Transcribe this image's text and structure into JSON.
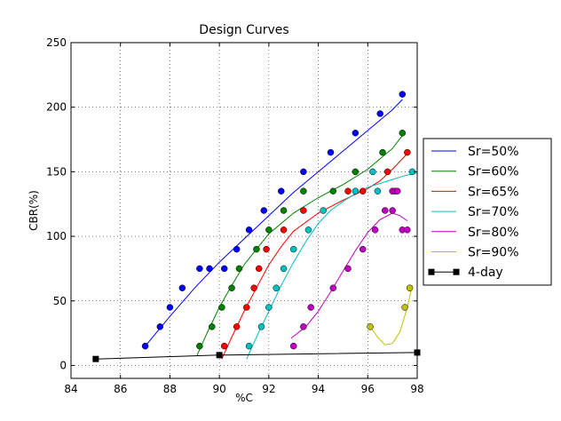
{
  "chart_data": {
    "type": "scatter",
    "title": "Design Curves",
    "xlabel": "%C",
    "ylabel": "CBR(%)",
    "xlim": [
      84,
      98
    ],
    "ylim": [
      -10,
      250
    ],
    "xticks": [
      84,
      86,
      88,
      90,
      92,
      94,
      96,
      98
    ],
    "xtick_labels": [
      "84",
      "86",
      "88",
      "90",
      "92",
      "94",
      "96",
      "98"
    ],
    "yticks": [
      0,
      50,
      100,
      150,
      200,
      250
    ],
    "ytick_labels": [
      "0",
      "50",
      "100",
      "150",
      "200",
      "250"
    ],
    "grid": true,
    "legend_position": "right-outside",
    "series": [
      {
        "name": "Sr=50%",
        "color": "#0000ff",
        "points": [
          [
            87,
            15
          ],
          [
            87.6,
            30
          ],
          [
            88,
            45
          ],
          [
            88.5,
            60
          ],
          [
            89.2,
            75
          ],
          [
            89.6,
            75
          ],
          [
            90.2,
            75
          ],
          [
            90.7,
            90
          ],
          [
            91.2,
            105
          ],
          [
            91.8,
            120
          ],
          [
            92.5,
            135
          ],
          [
            93.4,
            150
          ],
          [
            94.5,
            165
          ],
          [
            95.5,
            180
          ],
          [
            96.5,
            195
          ],
          [
            97.4,
            210
          ]
        ],
        "fit": [
          [
            87,
            15
          ],
          [
            88,
            38
          ],
          [
            89,
            60
          ],
          [
            90,
            80
          ],
          [
            91,
            98
          ],
          [
            92,
            116
          ],
          [
            93,
            134
          ],
          [
            94,
            150
          ],
          [
            95,
            166
          ],
          [
            96,
            182
          ],
          [
            97,
            198
          ],
          [
            97.4,
            206
          ]
        ]
      },
      {
        "name": "Sr=60%",
        "color": "#008000",
        "points": [
          [
            89.2,
            15
          ],
          [
            89.7,
            30
          ],
          [
            90.1,
            45
          ],
          [
            90.5,
            60
          ],
          [
            90.8,
            75
          ],
          [
            91.5,
            90
          ],
          [
            92,
            105
          ],
          [
            92.6,
            120
          ],
          [
            93.4,
            135
          ],
          [
            94.6,
            135
          ],
          [
            95.5,
            150
          ],
          [
            96.6,
            165
          ],
          [
            97.4,
            180
          ]
        ],
        "fit": [
          [
            89.1,
            8
          ],
          [
            89.5,
            25
          ],
          [
            90,
            45
          ],
          [
            90.5,
            62
          ],
          [
            91,
            78
          ],
          [
            91.5,
            90
          ],
          [
            92,
            102
          ],
          [
            93,
            118
          ],
          [
            94,
            130
          ],
          [
            95,
            140
          ],
          [
            96,
            152
          ],
          [
            96.5,
            160
          ],
          [
            97,
            168
          ],
          [
            97.4,
            178
          ]
        ]
      },
      {
        "name": "Sr=65%",
        "color": "#ff0000",
        "points": [
          [
            90.2,
            15
          ],
          [
            90.7,
            30
          ],
          [
            91.1,
            45
          ],
          [
            91.4,
            60
          ],
          [
            91.6,
            75
          ],
          [
            91.9,
            90
          ],
          [
            92.6,
            105
          ],
          [
            93.4,
            120
          ],
          [
            95.2,
            135
          ],
          [
            95.8,
            135
          ],
          [
            96.8,
            150
          ],
          [
            97.6,
            165
          ]
        ],
        "fit": [
          [
            90.1,
            5
          ],
          [
            90.5,
            22
          ],
          [
            91,
            42
          ],
          [
            91.5,
            60
          ],
          [
            92,
            78
          ],
          [
            92.5,
            92
          ],
          [
            93,
            104
          ],
          [
            94,
            118
          ],
          [
            95,
            128
          ],
          [
            96,
            137
          ],
          [
            96.5,
            143
          ],
          [
            97,
            152
          ],
          [
            97.5,
            162
          ],
          [
            97.6,
            165
          ]
        ]
      },
      {
        "name": "Sr=70%",
        "color": "#00bfbf",
        "points": [
          [
            91.2,
            15
          ],
          [
            91.7,
            30
          ],
          [
            92,
            45
          ],
          [
            92.3,
            60
          ],
          [
            92.6,
            75
          ],
          [
            93,
            90
          ],
          [
            93.6,
            105
          ],
          [
            94.2,
            120
          ],
          [
            95.5,
            135
          ],
          [
            96.2,
            150
          ],
          [
            96.4,
            135
          ],
          [
            97.8,
            150
          ]
        ],
        "fit": [
          [
            91.1,
            5
          ],
          [
            91.5,
            22
          ],
          [
            92,
            42
          ],
          [
            92.5,
            62
          ],
          [
            93,
            80
          ],
          [
            93.5,
            96
          ],
          [
            94,
            110
          ],
          [
            94.5,
            120
          ],
          [
            95,
            127
          ],
          [
            95.5,
            133
          ],
          [
            96,
            138
          ],
          [
            96.5,
            141
          ],
          [
            97,
            144
          ],
          [
            97.5,
            147
          ],
          [
            98,
            149
          ]
        ]
      },
      {
        "name": "Sr=80%",
        "color": "#bf00bf",
        "points": [
          [
            93,
            15
          ],
          [
            93.4,
            30
          ],
          [
            93.7,
            45
          ],
          [
            94.6,
            60
          ],
          [
            95.2,
            75
          ],
          [
            95.8,
            90
          ],
          [
            96.3,
            105
          ],
          [
            96.7,
            120
          ],
          [
            97,
            120
          ],
          [
            97,
            135
          ],
          [
            97.1,
            135
          ],
          [
            97.2,
            135
          ],
          [
            97.4,
            105
          ],
          [
            97.6,
            105
          ]
        ],
        "fit": [
          [
            92.9,
            21
          ],
          [
            93.5,
            30
          ],
          [
            94,
            42
          ],
          [
            94.5,
            57
          ],
          [
            95,
            73
          ],
          [
            95.5,
            89
          ],
          [
            96,
            103
          ],
          [
            96.5,
            113
          ],
          [
            97,
            118
          ],
          [
            97.3,
            116
          ],
          [
            97.6,
            112
          ]
        ]
      },
      {
        "name": "Sr=90%",
        "color": "#bfbf00",
        "points": [
          [
            96.1,
            30
          ],
          [
            97.5,
            45
          ],
          [
            97.7,
            60
          ]
        ],
        "fit": [
          [
            96.1,
            30
          ],
          [
            96.4,
            22
          ],
          [
            96.7,
            16
          ],
          [
            97,
            17
          ],
          [
            97.3,
            26
          ],
          [
            97.6,
            45
          ],
          [
            97.8,
            62
          ]
        ]
      },
      {
        "name": "4-day",
        "color": "#000000",
        "marker": "square",
        "points": [
          [
            85,
            5
          ],
          [
            90,
            8
          ],
          [
            98,
            10
          ]
        ]
      }
    ]
  }
}
